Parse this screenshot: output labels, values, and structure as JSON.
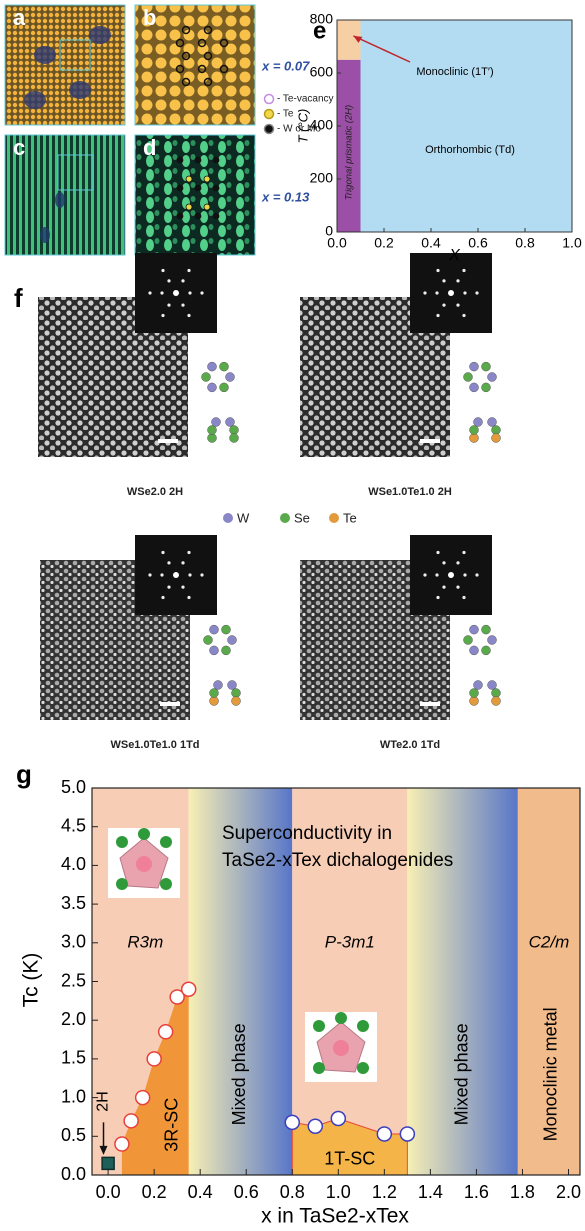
{
  "panel_ad": {
    "labels": [
      "a",
      "b",
      "c",
      "d"
    ],
    "compositions": [
      "x = 0.07",
      "x = 0.13"
    ],
    "legend": [
      "- Te-vacancy",
      "- Te",
      "- W or Mo"
    ]
  },
  "panel_f": {
    "label": "f",
    "captions": [
      "WSe2.0 2H",
      "WSe1.0Te1.0 2H",
      "WSe1.0Te1.0 1Td",
      "WTe2.0 1Td"
    ],
    "legend": [
      "W",
      "Se",
      "Te"
    ]
  },
  "chart_data": [
    {
      "type": "phase",
      "label": "e",
      "xlabel": "X",
      "ylabel": "T (°C)",
      "xlim": [
        0,
        1
      ],
      "ylim": [
        0,
        800
      ],
      "xticks": [
        {
          "value": 0,
          "label": "0.0"
        },
        0.2,
        0.4,
        0.6,
        0.8,
        {
          "value": 1,
          "label": "1.0"
        }
      ],
      "yticks": [
        0,
        200,
        400,
        600,
        800
      ],
      "regions": [
        {
          "name": "Orthorhombic (Td)",
          "xlim": [
            0.1,
            1
          ],
          "ylim": [
            0,
            800
          ],
          "color": "#b3dcf2"
        },
        {
          "name": "Trigonal prismatic (2H)",
          "xlim": [
            0,
            0.1
          ],
          "ylim": [
            0,
            650
          ],
          "color": "#9b4fa6"
        },
        {
          "name": "Monoclinic (1T′)",
          "xlim": [
            0,
            0.1
          ],
          "ylim": [
            650,
            800
          ],
          "color": "#f6cfa5"
        }
      ]
    },
    {
      "type": "scatter",
      "label": "g",
      "title": [
        "Superconductivity in",
        "TaSe2-xTex dichalogenides"
      ],
      "xlabel": "x in TaSe2-xTex",
      "ylabel": "Tc (K)",
      "xlim": [
        -0.07,
        2.05
      ],
      "ylim": [
        0,
        5
      ],
      "xticks": [
        {
          "value": 0,
          "label": "0.0"
        },
        0.2,
        0.4,
        0.6,
        0.8,
        {
          "value": 1,
          "label": "1.0"
        },
        1.2,
        1.4,
        1.6,
        1.8,
        {
          "value": 2,
          "label": "2.0"
        }
      ],
      "yticks": [
        {
          "value": 0,
          "label": "0.0"
        },
        0.5,
        {
          "value": 1,
          "label": "1.0"
        },
        1.5,
        {
          "value": 2,
          "label": "2.0"
        },
        2.5,
        {
          "value": 3,
          "label": "3.0"
        },
        3.5,
        {
          "value": 4,
          "label": "4.0"
        },
        4.5,
        {
          "value": 5,
          "label": "5.0"
        }
      ],
      "phases": [
        {
          "name": "R3m",
          "xlim": [
            -0.07,
            0.35
          ],
          "color": "#f8cdb6",
          "orientation": "horizontal"
        },
        {
          "name": "Mixed phase",
          "xlim": [
            0.35,
            0.8
          ],
          "colors": [
            "#f7efb4",
            "#5876c8"
          ],
          "orientation": "vertical"
        },
        {
          "name": "P-3m1",
          "xlim": [
            0.8,
            1.3
          ],
          "color": "#f8cdb6",
          "orientation": "horizontal"
        },
        {
          "name": "Mixed phase",
          "xlim": [
            1.3,
            1.78
          ],
          "colors": [
            "#f7efb4",
            "#5876c8"
          ],
          "orientation": "vertical"
        },
        {
          "name": "C2/m",
          "xlim": [
            1.78,
            2.05
          ],
          "color": "#f2bb8c",
          "orientation": "horizontal",
          "note": "Monoclinic metal"
        }
      ],
      "series": [
        {
          "name": "3R-SC",
          "x": [
            0.06,
            0.1,
            0.15,
            0.2,
            0.25,
            0.3,
            0.35
          ],
          "values": [
            0.4,
            0.7,
            1.0,
            1.5,
            1.85,
            2.3,
            2.4
          ],
          "color": "#ffffff",
          "edge": "#e8403a",
          "area_color": "#f0902a"
        },
        {
          "name": "1T-SC",
          "x": [
            0.8,
            0.9,
            1.0,
            1.2,
            1.3
          ],
          "values": [
            0.68,
            0.63,
            0.73,
            0.53,
            0.53
          ],
          "color": "#ffffff",
          "edge": "#3a3fc0",
          "area_color": "#f5b23d"
        },
        {
          "name": "2H",
          "x": [
            0
          ],
          "values": [
            0.15
          ],
          "color": "#1f5f5a",
          "edge": "#0c2f2c",
          "marker": "square"
        }
      ]
    }
  ]
}
